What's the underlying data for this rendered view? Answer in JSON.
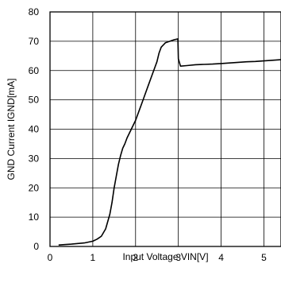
{
  "chart_data": {
    "type": "line",
    "xlabel": "Input Voltage VIN[V]",
    "ylabel": "GND Current IGND[mA]",
    "xlim": [
      0,
      5.4
    ],
    "ylim": [
      0,
      80
    ],
    "x_ticks": [
      "0",
      "1",
      "2",
      "3",
      "4",
      "5"
    ],
    "y_ticks": [
      "0",
      "10",
      "20",
      "30",
      "40",
      "50",
      "60",
      "70",
      "80"
    ],
    "grid": true,
    "series": [
      {
        "x": [
          0.2,
          0.5,
          0.8,
          1.0,
          1.1,
          1.2,
          1.3,
          1.4,
          1.45,
          1.5,
          1.55,
          1.6,
          1.65,
          1.7,
          1.75,
          1.8,
          1.9,
          2.0,
          2.1,
          2.2,
          2.3,
          2.4,
          2.5,
          2.55,
          2.6,
          2.7,
          2.8,
          2.9,
          2.99,
          3.0,
          3.05,
          3.2,
          3.4,
          3.6,
          3.8,
          4.0,
          4.2,
          4.4,
          4.6,
          4.8,
          5.0,
          5.2,
          5.4
        ],
        "y": [
          0.5,
          0.8,
          1.2,
          1.8,
          2.5,
          3.5,
          6,
          11,
          15,
          20,
          24,
          28,
          31,
          33.5,
          35,
          37,
          40,
          43,
          47,
          51,
          55,
          59,
          63,
          66,
          68,
          69.5,
          70,
          70.5,
          70.8,
          64,
          61.5,
          61.7,
          62,
          62.1,
          62.2,
          62.4,
          62.6,
          62.8,
          63,
          63.1,
          63.3,
          63.5,
          63.7
        ]
      }
    ]
  },
  "colors": {
    "line": "#000000",
    "grid": "#000000"
  }
}
